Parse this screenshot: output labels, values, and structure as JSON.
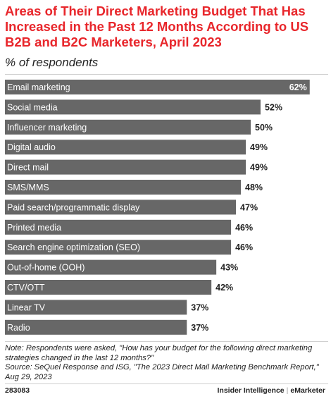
{
  "header": {
    "title": "Areas of Their Direct Marketing Budget That Has Increased in the Past 12 Months According to US B2B and B2C Marketers, April 2023",
    "subtitle": "% of respondents"
  },
  "chart_data": {
    "type": "bar",
    "orientation": "horizontal",
    "categories": [
      "Email marketing",
      "Social media",
      "Influencer marketing",
      "Digital audio",
      "Direct mail",
      "SMS/MMS",
      "Paid search/programmatic display",
      "Printed media",
      "Search engine optimization (SEO)",
      "Out-of-home (OOH)",
      "CTV/OTT",
      "Linear TV",
      "Radio"
    ],
    "values": [
      62,
      52,
      50,
      49,
      49,
      48,
      47,
      46,
      46,
      43,
      42,
      37,
      37
    ],
    "value_labels": [
      "62%",
      "52%",
      "50%",
      "49%",
      "49%",
      "48%",
      "47%",
      "46%",
      "46%",
      "43%",
      "42%",
      "37%",
      "37%"
    ],
    "bar_color": "#676767",
    "label_color": "#ffffff",
    "value_color": "#222222"
  },
  "footer": {
    "note_line1": "Note: Respondents were asked, \"How has your budget for the following direct marketing strategies changed in the last 12 months?\"",
    "note_line2": "Source: SeQuel Response and ISG, \"The 2023 Direct Mail Marketing Benchmark Report,\" Aug 29, 2023",
    "code": "283083",
    "brand_left": "Insider Intelligence",
    "brand_sep": "|",
    "brand_right": "eMarketer"
  }
}
